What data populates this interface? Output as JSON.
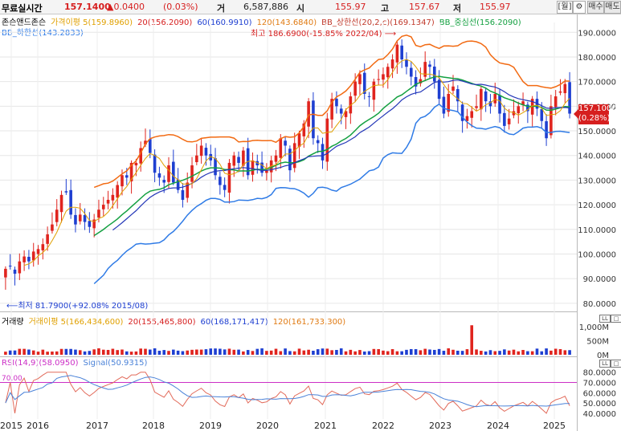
{
  "header": {
    "title": "무료실시간",
    "price": "157.1400",
    "change": "▲0.0400",
    "change_pct": "(0.03%)",
    "volume_label": "거",
    "volume": "6,587,886",
    "open_label": "시",
    "open": "155.97",
    "high_label": "고",
    "high": "157.67",
    "low_label": "저",
    "low": "155.97",
    "buttons": {
      "week": "[월]",
      "settings": "⚙",
      "buy": "매수",
      "sell": "매도"
    }
  },
  "legends": {
    "price": [
      "존슨앤드존슨",
      "가격이평 5(159.8960)",
      "20(156.2090)",
      "60(160.9910)",
      "120(143.6840)",
      "BB_상한선(20,2,c)(169.1347)",
      "BB_중심선(156.2090)",
      "BB_하한선(143.2833)"
    ],
    "volume": [
      "거래량",
      "거래이평 5(166,434,600)",
      "20(155,465,800)",
      "60(168,171,417)",
      "120(161,733,300)"
    ],
    "rsi": [
      "RSI(14,9)(58.0950)",
      "Signal(50.9315)"
    ]
  },
  "annotations": {
    "high": "최고 186.6900(-15.85% 2022/04)",
    "low": "최저 81.7900(+92.08% 2015/08)",
    "last_price": "157.1000",
    "last_pct": "(0.28%)",
    "rsi_ref": "70.00"
  },
  "colors": {
    "up": "#e0241e",
    "down": "#1e3fd1",
    "ma5": "#e0a000",
    "ma20": "#17a34a",
    "bb_upper": "#f26a12",
    "bb_middle": "#13a040",
    "bb_lower": "#2f7be6",
    "ma120": "#2437b8",
    "rsi": "#e26a5a",
    "signal": "#4a82d8",
    "rsi_ref": "#cc2fc6"
  },
  "chart_data": [
    {
      "type": "candlestick",
      "title": "존슨앤드존슨",
      "period": "monthly",
      "x_ticks": [
        "2015",
        "2016",
        "2017",
        "2018",
        "2019",
        "2020",
        "2021",
        "2022",
        "2023",
        "2024",
        "2025"
      ],
      "y_ticks": [
        "190.0000",
        "180.0000",
        "170.0000",
        "160.0000",
        "150.0000",
        "140.0000",
        "130.0000",
        "120.0000",
        "110.0000",
        "100.0000",
        "90.0000",
        "80.0000"
      ],
      "ylim": [
        78,
        194
      ],
      "close": [
        94,
        95,
        92,
        97,
        99,
        97,
        101,
        102,
        104,
        108,
        112,
        118,
        124,
        125,
        116,
        112,
        116,
        113,
        111,
        114,
        118,
        120,
        122,
        124,
        128,
        132,
        131,
        137,
        137,
        143,
        146,
        141,
        133,
        131,
        129,
        136,
        129,
        126,
        122,
        129,
        136,
        140,
        144,
        140,
        138,
        132,
        128,
        126,
        137,
        140,
        137,
        142,
        132,
        138,
        136,
        133,
        134,
        138,
        140,
        147,
        144,
        134,
        145,
        149,
        153,
        162,
        147,
        145,
        138,
        155,
        163,
        160,
        157,
        158,
        164,
        170,
        173,
        165,
        164,
        170,
        171,
        173,
        176,
        179,
        185,
        179,
        176,
        172,
        168,
        171,
        178,
        176,
        170,
        163,
        157,
        165,
        168,
        162,
        154,
        156,
        158,
        160,
        167,
        162,
        160,
        165,
        157,
        152,
        155,
        158,
        160,
        162,
        158,
        163,
        159,
        154,
        147,
        160,
        164,
        166,
        169,
        157
      ]
    },
    {
      "type": "bar",
      "title": "거래량",
      "y_ticks": [
        "1,000M",
        "500M",
        "0M"
      ],
      "ylim": [
        0,
        1200
      ]
    },
    {
      "type": "line",
      "title": "RSI(14,9)",
      "y_ticks": [
        "80.0000",
        "70.0000",
        "60.0000",
        "50.0000",
        "40.0000"
      ],
      "ylim": [
        36,
        86
      ],
      "series": [
        {
          "name": "RSI(14,9)(58.0950)"
        },
        {
          "name": "Signal(50.9315)"
        }
      ]
    }
  ]
}
